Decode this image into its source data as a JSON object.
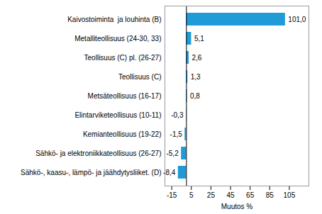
{
  "chart_data": {
    "type": "bar",
    "orientation": "horizontal",
    "x_label": "Muutos %",
    "categories": [
      "Kaivostoiminta  ja louhinta (B)",
      "Metalliteollisuus (24-30, 33)",
      "Teollisuus (C) pl. (26-27)",
      "Teollisuus (C)",
      "Metsäteollisuus (16-17)",
      "Elintarviketeollisuus (10-11)",
      "Kemianteollisuus (19-22)",
      "Sähkö- ja elektroniikkateollisuus (26-27)",
      "Sähkö-, kaasu-, lämpö- ja jäähdytysliiket. (D)"
    ],
    "values": [
      101.0,
      5.1,
      2.6,
      1.3,
      0.8,
      -0.3,
      -1.5,
      -5.2,
      -8.4
    ],
    "value_labels": [
      "101,0",
      "5,1",
      "2,6",
      "1,3",
      "0,8",
      "-0,3",
      "-1,5",
      "-5,2",
      "-8,4"
    ],
    "data_labels": true,
    "color": "#1f9bd8",
    "xlim": [
      -22,
      125
    ],
    "xticks": [
      -15,
      5,
      25,
      45,
      65,
      85,
      105
    ],
    "grid": false
  }
}
